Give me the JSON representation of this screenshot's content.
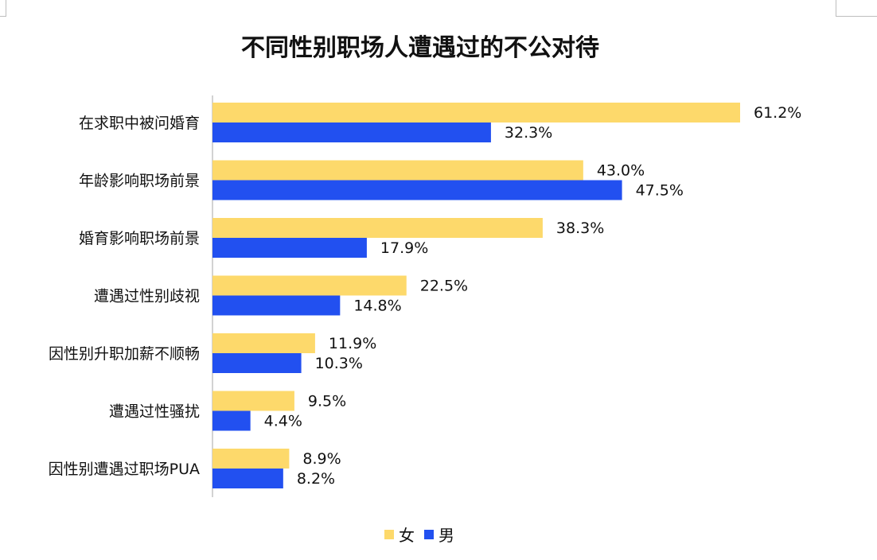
{
  "chart_data": {
    "type": "bar",
    "orientation": "horizontal",
    "title": "不同性别职场人遭遇过的不公对待",
    "categories": [
      "在求职中被问婚育",
      "年龄影响职场前景",
      "婚育影响职场前景",
      "遭遇过性别歧视",
      "因性别升职加薪不顺畅",
      "遭遇过性骚扰",
      "因性别遭遇过职场PUA"
    ],
    "series": [
      {
        "name": "女",
        "color": "#FDD96B",
        "values": [
          61.2,
          43.0,
          38.3,
          22.5,
          11.9,
          9.5,
          8.9
        ],
        "labels": [
          "61.2%",
          "43.0%",
          "38.3%",
          "22.5%",
          "11.9%",
          "9.5%",
          "8.9%"
        ]
      },
      {
        "name": "男",
        "color": "#2250F0",
        "values": [
          32.3,
          47.5,
          17.9,
          14.8,
          10.3,
          4.4,
          8.2
        ],
        "labels": [
          "32.3%",
          "47.5%",
          "17.9%",
          "14.8%",
          "10.3%",
          "4.4%",
          "8.2%"
        ]
      }
    ],
    "xlabel": "",
    "ylabel": "",
    "xlim": [
      0,
      61.2
    ],
    "grid": false,
    "legend": "bottom-center"
  }
}
